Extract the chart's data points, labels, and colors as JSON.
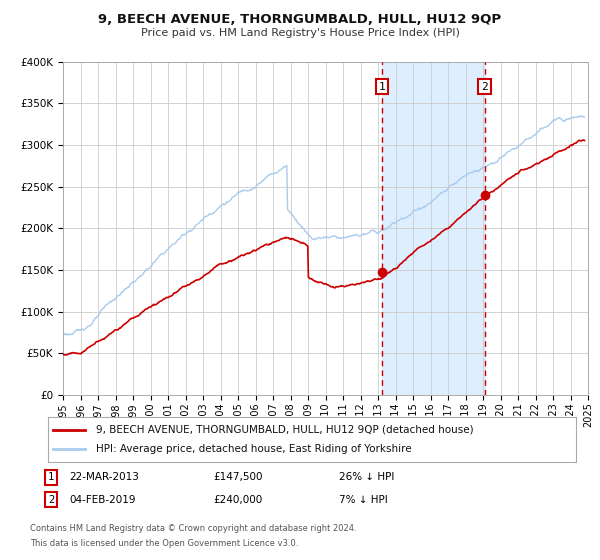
{
  "title": "9, BEECH AVENUE, THORNGUMBALD, HULL, HU12 9QP",
  "subtitle": "Price paid vs. HM Land Registry's House Price Index (HPI)",
  "red_label": "9, BEECH AVENUE, THORNGUMBALD, HULL, HU12 9QP (detached house)",
  "blue_label": "HPI: Average price, detached house, East Riding of Yorkshire",
  "point1_date": "22-MAR-2013",
  "point1_price": 147500,
  "point1_hpi": "26% ↓ HPI",
  "point2_date": "04-FEB-2019",
  "point2_price": 240000,
  "point2_hpi": "7% ↓ HPI",
  "point1_year": 2013.22,
  "point2_year": 2019.09,
  "yticks": [
    0,
    50000,
    100000,
    150000,
    200000,
    250000,
    300000,
    350000,
    400000
  ],
  "ytick_labels": [
    "£0",
    "£50K",
    "£100K",
    "£150K",
    "£200K",
    "£250K",
    "£300K",
    "£350K",
    "£400K"
  ],
  "xlim_start": 1995,
  "xlim_end": 2025,
  "ylim_min": 0,
  "ylim_max": 400000,
  "background_color": "#ffffff",
  "grid_color": "#cccccc",
  "red_color": "#cc0000",
  "blue_color": "#aaccee",
  "shaded_color": "#ddeeff",
  "label1_num": "1",
  "label2_num": "2",
  "footnote_line1": "Contains HM Land Registry data © Crown copyright and database right 2024.",
  "footnote_line2": "This data is licensed under the Open Government Licence v3.0."
}
